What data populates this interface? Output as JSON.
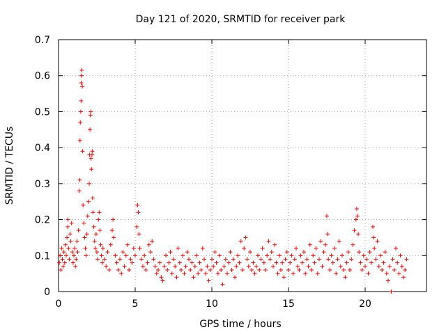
{
  "chart_data": {
    "type": "scatter",
    "title": "Day 121 of 2020, SRMTID for receiver park",
    "xlabel": "GPS time / hours",
    "ylabel": "SRMTID / TECUs",
    "xlim": [
      0,
      24
    ],
    "ylim": [
      0,
      0.7
    ],
    "xticks": [
      0,
      5,
      10,
      15,
      20
    ],
    "yticks": [
      0,
      0.1,
      0.2,
      0.3,
      0.4,
      0.5,
      0.6,
      0.7
    ],
    "xtick_labels": [
      "0",
      "5",
      "10",
      "15",
      "20"
    ],
    "ytick_labels": [
      "0",
      "0.1",
      "0.2",
      "0.3",
      "0.4",
      "0.5",
      "0.6",
      "0.7"
    ],
    "grid": true,
    "marker": "+",
    "color": "#ff0000",
    "series": [
      {
        "name": "SRMTID",
        "points": [
          [
            0.05,
            0.08
          ],
          [
            0.1,
            0.1
          ],
          [
            0.15,
            0.06
          ],
          [
            0.2,
            0.12
          ],
          [
            0.25,
            0.09
          ],
          [
            0.3,
            0.07
          ],
          [
            0.35,
            0.11
          ],
          [
            0.4,
            0.08
          ],
          [
            0.45,
            0.13
          ],
          [
            0.5,
            0.1
          ],
          [
            0.55,
            0.15
          ],
          [
            0.6,
            0.18
          ],
          [
            0.62,
            0.2
          ],
          [
            0.65,
            0.12
          ],
          [
            0.7,
            0.09
          ],
          [
            0.75,
            0.16
          ],
          [
            0.8,
            0.14
          ],
          [
            0.85,
            0.19
          ],
          [
            0.9,
            0.11
          ],
          [
            0.95,
            0.08
          ],
          [
            1.0,
            0.1
          ],
          [
            1.05,
            0.12
          ],
          [
            1.1,
            0.07
          ],
          [
            1.15,
            0.09
          ],
          [
            1.2,
            0.14
          ],
          [
            1.25,
            0.11
          ],
          [
            1.3,
            0.17
          ],
          [
            1.35,
            0.28
          ],
          [
            1.38,
            0.31
          ],
          [
            1.4,
            0.42
          ],
          [
            1.42,
            0.47
          ],
          [
            1.45,
            0.5
          ],
          [
            1.47,
            0.53
          ],
          [
            1.48,
            0.58
          ],
          [
            1.5,
            0.6
          ],
          [
            1.52,
            0.615
          ],
          [
            1.55,
            0.57
          ],
          [
            1.57,
            0.39
          ],
          [
            1.6,
            0.24
          ],
          [
            1.65,
            0.19
          ],
          [
            1.7,
            0.15
          ],
          [
            1.75,
            0.12
          ],
          [
            1.8,
            0.1
          ],
          [
            1.85,
            0.16
          ],
          [
            1.9,
            0.21
          ],
          [
            1.95,
            0.25
          ],
          [
            2.0,
            0.3
          ],
          [
            2.02,
            0.38
          ],
          [
            2.05,
            0.45
          ],
          [
            2.08,
            0.49
          ],
          [
            2.1,
            0.5
          ],
          [
            2.12,
            0.37
          ],
          [
            2.15,
            0.34
          ],
          [
            2.18,
            0.38
          ],
          [
            2.2,
            0.39
          ],
          [
            2.22,
            0.26
          ],
          [
            2.25,
            0.22
          ],
          [
            2.3,
            0.18
          ],
          [
            2.35,
            0.14
          ],
          [
            2.4,
            0.12
          ],
          [
            2.45,
            0.16
          ],
          [
            2.5,
            0.11
          ],
          [
            2.55,
            0.09
          ],
          [
            2.6,
            0.2
          ],
          [
            2.65,
            0.22
          ],
          [
            2.7,
            0.17
          ],
          [
            2.75,
            0.13
          ],
          [
            2.8,
            0.1
          ],
          [
            2.85,
            0.08
          ],
          [
            2.9,
            0.12
          ],
          [
            3.0,
            0.09
          ],
          [
            3.1,
            0.07
          ],
          [
            3.2,
            0.11
          ],
          [
            3.3,
            0.06
          ],
          [
            3.4,
            0.13
          ],
          [
            3.5,
            0.17
          ],
          [
            3.55,
            0.2
          ],
          [
            3.6,
            0.15
          ],
          [
            3.7,
            0.1
          ],
          [
            3.8,
            0.08
          ],
          [
            3.9,
            0.06
          ],
          [
            4.0,
            0.09
          ],
          [
            4.1,
            0.05
          ],
          [
            4.2,
            0.11
          ],
          [
            4.3,
            0.07
          ],
          [
            4.4,
            0.1
          ],
          [
            4.5,
            0.13
          ],
          [
            4.6,
            0.06
          ],
          [
            4.7,
            0.09
          ],
          [
            4.8,
            0.08
          ],
          [
            4.9,
            0.12
          ],
          [
            5.0,
            0.1
          ],
          [
            5.1,
            0.18
          ],
          [
            5.15,
            0.24
          ],
          [
            5.2,
            0.22
          ],
          [
            5.25,
            0.16
          ],
          [
            5.3,
            0.12
          ],
          [
            5.4,
            0.09
          ],
          [
            5.5,
            0.07
          ],
          [
            5.6,
            0.1
          ],
          [
            5.7,
            0.06
          ],
          [
            5.8,
            0.08
          ],
          [
            5.9,
            0.13
          ],
          [
            6.0,
            0.11
          ],
          [
            6.1,
            0.14
          ],
          [
            6.2,
            0.09
          ],
          [
            6.3,
            0.07
          ],
          [
            6.4,
            0.05
          ],
          [
            6.5,
            0.06
          ],
          [
            6.6,
            0.08
          ],
          [
            6.7,
            0.04
          ],
          [
            6.8,
            0.03
          ],
          [
            6.9,
            0.07
          ],
          [
            7.0,
            0.1
          ],
          [
            7.1,
            0.06
          ],
          [
            7.2,
            0.08
          ],
          [
            7.3,
            0.11
          ],
          [
            7.4,
            0.05
          ],
          [
            7.5,
            0.09
          ],
          [
            7.6,
            0.07
          ],
          [
            7.7,
            0.04
          ],
          [
            7.8,
            0.12
          ],
          [
            7.9,
            0.08
          ],
          [
            8.0,
            0.06
          ],
          [
            8.1,
            0.1
          ],
          [
            8.2,
            0.05
          ],
          [
            8.3,
            0.07
          ],
          [
            8.4,
            0.11
          ],
          [
            8.5,
            0.09
          ],
          [
            8.6,
            0.06
          ],
          [
            8.7,
            0.08
          ],
          [
            8.8,
            0.04
          ],
          [
            8.9,
            0.07
          ],
          [
            9.0,
            0.1
          ],
          [
            9.1,
            0.05
          ],
          [
            9.2,
            0.08
          ],
          [
            9.3,
            0.06
          ],
          [
            9.4,
            0.12
          ],
          [
            9.5,
            0.09
          ],
          [
            9.6,
            0.05
          ],
          [
            9.7,
            0.07
          ],
          [
            9.8,
            0.03
          ],
          [
            9.9,
            0.06
          ],
          [
            10.0,
            0.09
          ],
          [
            10.1,
            0.07
          ],
          [
            10.2,
            0.11
          ],
          [
            10.3,
            0.08
          ],
          [
            10.4,
            0.05
          ],
          [
            10.5,
            0.1
          ],
          [
            10.6,
            0.06
          ],
          [
            10.7,
            0.02
          ],
          [
            10.8,
            0.07
          ],
          [
            10.9,
            0.09
          ],
          [
            11.0,
            0.05
          ],
          [
            11.1,
            0.08
          ],
          [
            11.2,
            0.11
          ],
          [
            11.3,
            0.06
          ],
          [
            11.4,
            0.09
          ],
          [
            11.5,
            0.04
          ],
          [
            11.6,
            0.07
          ],
          [
            11.7,
            0.1
          ],
          [
            11.8,
            0.08
          ],
          [
            11.9,
            0.14
          ],
          [
            12.0,
            0.06
          ],
          [
            12.1,
            0.12
          ],
          [
            12.2,
            0.15
          ],
          [
            12.3,
            0.09
          ],
          [
            12.4,
            0.07
          ],
          [
            12.5,
            0.11
          ],
          [
            12.6,
            0.06
          ],
          [
            12.7,
            0.08
          ],
          [
            12.8,
            0.05
          ],
          [
            12.9,
            0.07
          ],
          [
            13.0,
            0.1
          ],
          [
            13.1,
            0.06
          ],
          [
            13.2,
            0.09
          ],
          [
            13.3,
            0.12
          ],
          [
            13.4,
            0.08
          ],
          [
            13.5,
            0.06
          ],
          [
            13.6,
            0.1
          ],
          [
            13.7,
            0.14
          ],
          [
            13.8,
            0.09
          ],
          [
            13.9,
            0.11
          ],
          [
            14.0,
            0.07
          ],
          [
            14.1,
            0.13
          ],
          [
            14.2,
            0.08
          ],
          [
            14.3,
            0.05
          ],
          [
            14.4,
            0.1
          ],
          [
            14.5,
            0.06
          ],
          [
            14.6,
            0.08
          ],
          [
            14.7,
            0.04
          ],
          [
            14.8,
            0.09
          ],
          [
            14.9,
            0.11
          ],
          [
            15.0,
            0.06
          ],
          [
            15.1,
            0.08
          ],
          [
            15.2,
            0.1
          ],
          [
            15.3,
            0.05
          ],
          [
            15.4,
            0.09
          ],
          [
            15.5,
            0.12
          ],
          [
            15.6,
            0.07
          ],
          [
            15.7,
            0.06
          ],
          [
            15.8,
            0.1
          ],
          [
            15.9,
            0.08
          ],
          [
            16.0,
            0.11
          ],
          [
            16.1,
            0.05
          ],
          [
            16.2,
            0.09
          ],
          [
            16.3,
            0.07
          ],
          [
            16.4,
            0.13
          ],
          [
            16.5,
            0.06
          ],
          [
            16.6,
            0.1
          ],
          [
            16.7,
            0.08
          ],
          [
            16.8,
            0.12
          ],
          [
            16.9,
            0.05
          ],
          [
            17.0,
            0.09
          ],
          [
            17.1,
            0.14
          ],
          [
            17.2,
            0.07
          ],
          [
            17.3,
            0.11
          ],
          [
            17.4,
            0.13
          ],
          [
            17.5,
            0.21
          ],
          [
            17.55,
            0.16
          ],
          [
            17.6,
            0.09
          ],
          [
            17.7,
            0.06
          ],
          [
            17.8,
            0.1
          ],
          [
            17.9,
            0.08
          ],
          [
            18.0,
            0.12
          ],
          [
            18.1,
            0.05
          ],
          [
            18.2,
            0.09
          ],
          [
            18.3,
            0.14
          ],
          [
            18.4,
            0.07
          ],
          [
            18.5,
            0.1
          ],
          [
            18.6,
            0.06
          ],
          [
            18.7,
            0.04
          ],
          [
            18.8,
            0.08
          ],
          [
            18.9,
            0.11
          ],
          [
            19.0,
            0.06
          ],
          [
            19.1,
            0.09
          ],
          [
            19.2,
            0.13
          ],
          [
            19.3,
            0.17
          ],
          [
            19.4,
            0.2
          ],
          [
            19.45,
            0.23
          ],
          [
            19.5,
            0.21
          ],
          [
            19.55,
            0.16
          ],
          [
            19.6,
            0.11
          ],
          [
            19.7,
            0.08
          ],
          [
            19.8,
            0.06
          ],
          [
            19.9,
            0.1
          ],
          [
            20.0,
            0.07
          ],
          [
            20.1,
            0.09
          ],
          [
            20.2,
            0.05
          ],
          [
            20.3,
            0.11
          ],
          [
            20.4,
            0.08
          ],
          [
            20.5,
            0.18
          ],
          [
            20.55,
            0.15
          ],
          [
            20.6,
            0.12
          ],
          [
            20.7,
            0.09
          ],
          [
            20.8,
            0.14
          ],
          [
            20.9,
            0.07
          ],
          [
            21.0,
            0.1
          ],
          [
            21.1,
            0.06
          ],
          [
            21.2,
            0.08
          ],
          [
            21.3,
            0.11
          ],
          [
            21.4,
            0.05
          ],
          [
            21.5,
            0.03
          ],
          [
            21.6,
            0.07
          ],
          [
            21.7,
            0.0
          ],
          [
            21.8,
            0.09
          ],
          [
            21.9,
            0.06
          ],
          [
            22.0,
            0.12
          ],
          [
            22.1,
            0.08
          ],
          [
            22.2,
            0.05
          ],
          [
            22.3,
            0.1
          ],
          [
            22.4,
            0.07
          ],
          [
            22.5,
            0.04
          ],
          [
            22.6,
            0.06
          ],
          [
            22.7,
            0.09
          ]
        ]
      }
    ]
  }
}
